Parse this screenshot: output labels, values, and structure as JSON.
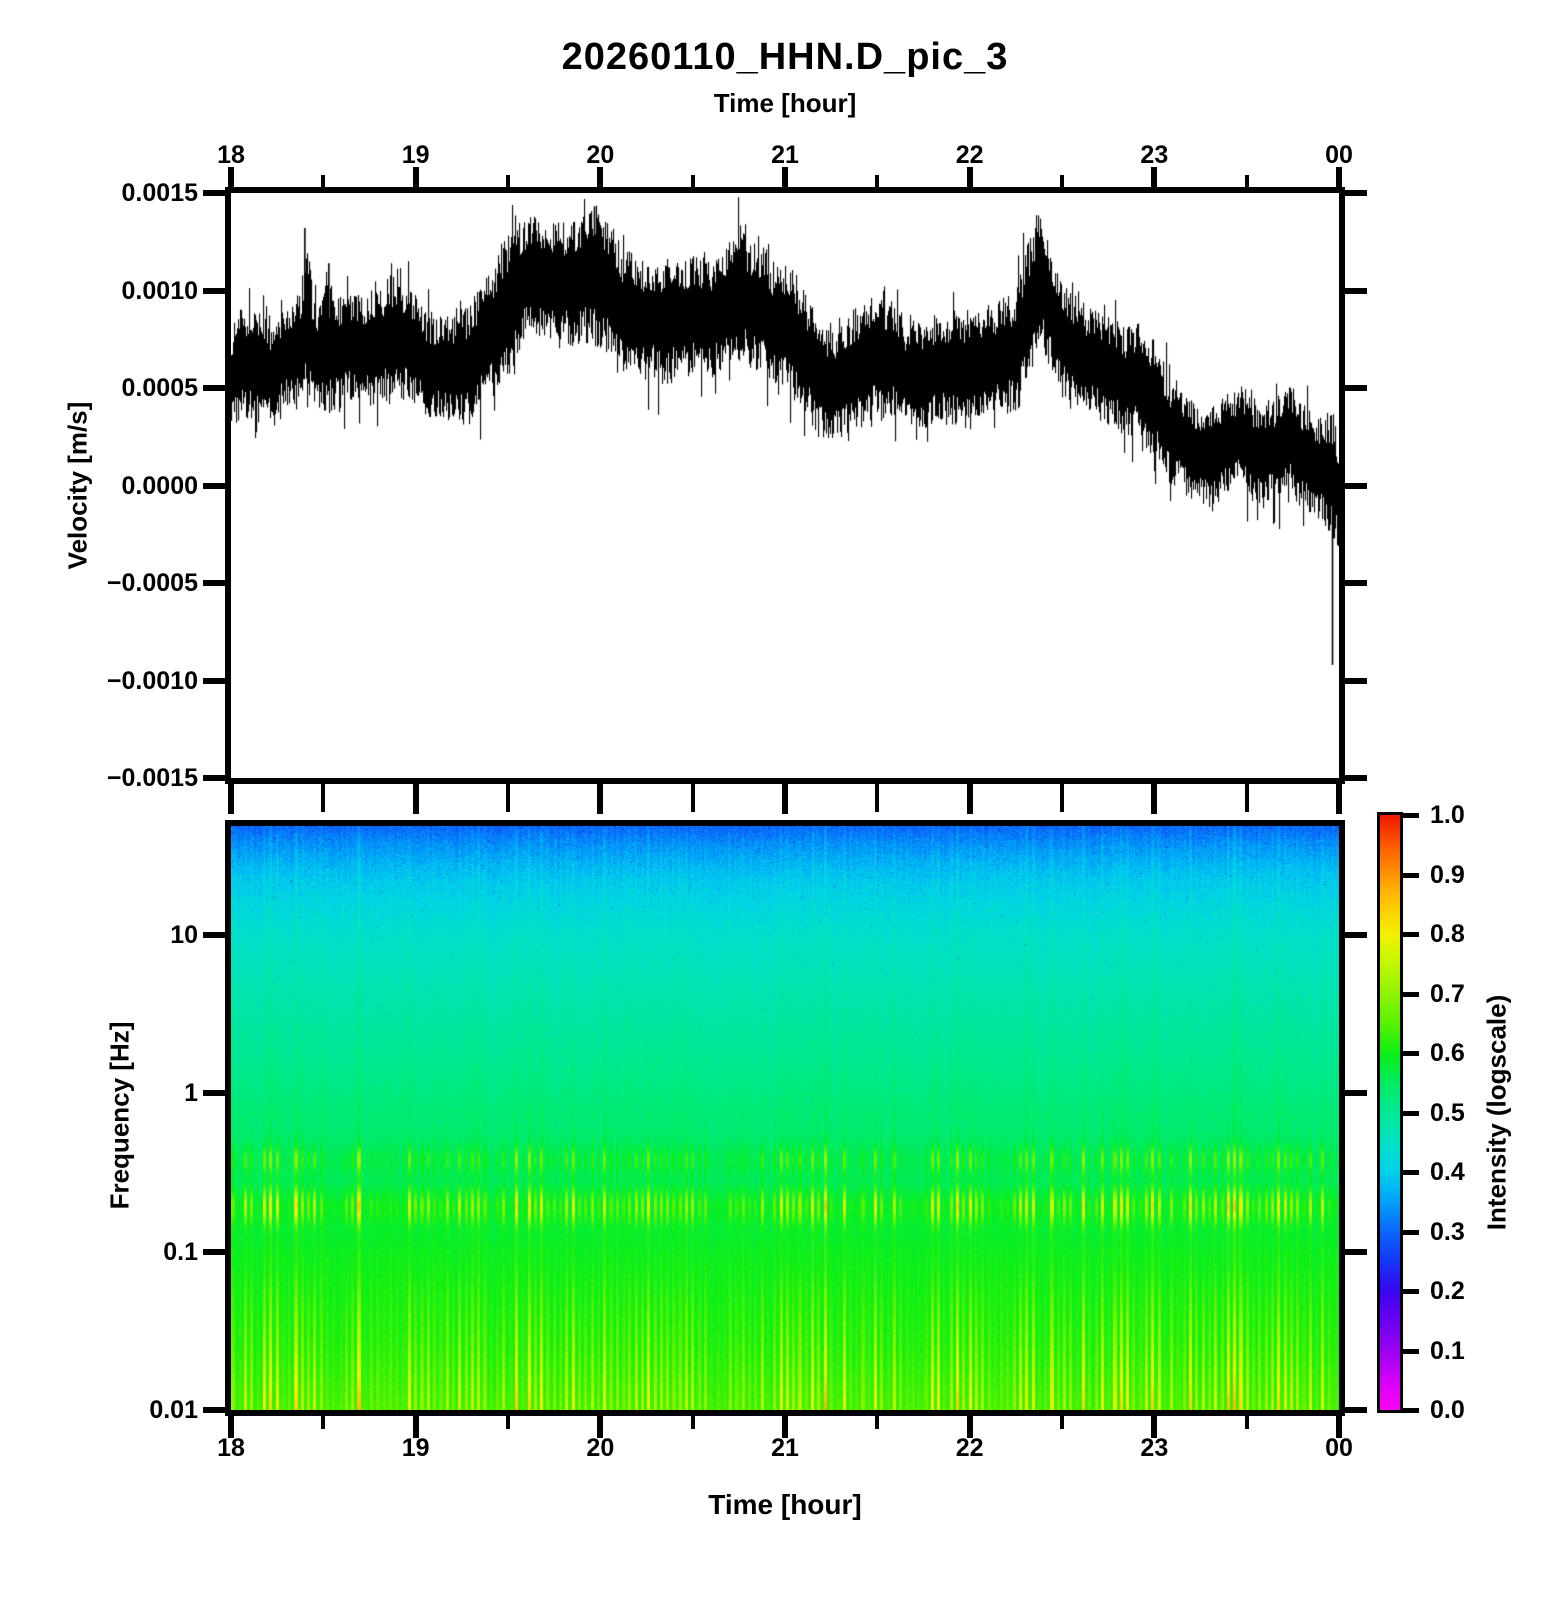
{
  "title": "20260110_HHN.D_pic_3",
  "seismogram": {
    "xlabel": "Time [hour]",
    "ylabel": "Velocity [m/s]",
    "xtick_labels": [
      "18",
      "19",
      "20",
      "21",
      "22",
      "23",
      "00"
    ],
    "ytick_labels": [
      "0.0015",
      "0.0010",
      "0.0005",
      "0.0000",
      "−0.0005",
      "−0.0010",
      "−0.0015"
    ]
  },
  "spectrogram": {
    "xlabel": "Time [hour]",
    "ylabel": "Frequency [Hz]",
    "xtick_labels": [
      "18",
      "19",
      "20",
      "21",
      "22",
      "23",
      "00"
    ],
    "ytick_labels": [
      "10",
      "1",
      "0.1",
      "0.01"
    ]
  },
  "colorbar": {
    "label": "Intensity (logscale)",
    "tick_labels": [
      "1.0",
      "0.9",
      "0.8",
      "0.7",
      "0.6",
      "0.5",
      "0.4",
      "0.3",
      "0.2",
      "0.1",
      "0.0"
    ]
  },
  "chart_data": [
    {
      "type": "line",
      "title": "20260110_HHN.D_pic_3",
      "xlabel": "Time [hour]",
      "ylabel": "Velocity [m/s]",
      "x_range_hours": [
        18,
        24
      ],
      "xtick_labels": [
        "18",
        "19",
        "20",
        "21",
        "22",
        "23",
        "00"
      ],
      "ylim": [
        -0.0015,
        0.0015
      ],
      "ytick_values": [
        0.0015,
        0.001,
        0.0005,
        0.0,
        -0.0005,
        -0.001,
        -0.0015
      ],
      "series_name": "velocity-waveform",
      "envelope_units": "1e-4 m/s, [hour, center, half_amplitude]",
      "envelope": [
        [
          18.0,
          5.8,
          2.0
        ],
        [
          18.1,
          6.3,
          2.2
        ],
        [
          18.2,
          5.9,
          2.0
        ],
        [
          18.3,
          6.3,
          2.0
        ],
        [
          18.38,
          7.0,
          2.3
        ],
        [
          18.41,
          8.3,
          3.4
        ],
        [
          18.45,
          6.8,
          2.2
        ],
        [
          18.52,
          7.3,
          2.7
        ],
        [
          18.6,
          7.0,
          2.2
        ],
        [
          18.7,
          7.3,
          2.2
        ],
        [
          18.8,
          7.2,
          2.4
        ],
        [
          18.9,
          7.4,
          2.5
        ],
        [
          19.0,
          6.9,
          2.2
        ],
        [
          19.1,
          5.9,
          2.0
        ],
        [
          19.2,
          6.0,
          2.2
        ],
        [
          19.3,
          6.8,
          2.4
        ],
        [
          19.4,
          7.6,
          2.6
        ],
        [
          19.5,
          9.2,
          2.8
        ],
        [
          19.6,
          10.6,
          2.5
        ],
        [
          19.7,
          10.3,
          2.4
        ],
        [
          19.8,
          10.6,
          2.4
        ],
        [
          19.9,
          10.8,
          2.6
        ],
        [
          19.97,
          10.9,
          3.0
        ],
        [
          20.05,
          10.2,
          2.6
        ],
        [
          20.15,
          8.8,
          2.4
        ],
        [
          20.25,
          8.1,
          2.4
        ],
        [
          20.35,
          8.3,
          2.4
        ],
        [
          20.45,
          8.8,
          2.4
        ],
        [
          20.55,
          8.7,
          2.4
        ],
        [
          20.65,
          9.1,
          2.4
        ],
        [
          20.75,
          9.4,
          2.6
        ],
        [
          20.85,
          9.0,
          2.6
        ],
        [
          20.95,
          8.3,
          2.4
        ],
        [
          21.05,
          7.6,
          2.6
        ],
        [
          21.15,
          6.3,
          2.4
        ],
        [
          21.25,
          5.3,
          2.2
        ],
        [
          21.35,
          5.6,
          2.4
        ],
        [
          21.45,
          6.6,
          2.6
        ],
        [
          21.55,
          6.3,
          2.4
        ],
        [
          21.65,
          5.7,
          2.2
        ],
        [
          21.75,
          5.9,
          2.2
        ],
        [
          21.85,
          6.1,
          2.2
        ],
        [
          21.95,
          6.2,
          2.4
        ],
        [
          22.05,
          6.0,
          2.2
        ],
        [
          22.15,
          6.2,
          2.2
        ],
        [
          22.25,
          6.8,
          2.4
        ],
        [
          22.33,
          9.0,
          3.0
        ],
        [
          22.38,
          10.4,
          2.7
        ],
        [
          22.45,
          8.8,
          2.4
        ],
        [
          22.55,
          7.4,
          2.4
        ],
        [
          22.65,
          6.2,
          2.2
        ],
        [
          22.75,
          5.9,
          2.2
        ],
        [
          22.85,
          5.2,
          2.2
        ],
        [
          22.95,
          5.0,
          2.4
        ],
        [
          23.05,
          3.8,
          2.2
        ],
        [
          23.15,
          2.4,
          2.0
        ],
        [
          23.25,
          1.6,
          2.0
        ],
        [
          23.35,
          1.8,
          2.0
        ],
        [
          23.45,
          2.2,
          2.0
        ],
        [
          23.55,
          1.6,
          2.0
        ],
        [
          23.65,
          1.9,
          2.0
        ],
        [
          23.75,
          2.3,
          2.2
        ],
        [
          23.85,
          1.4,
          2.0
        ],
        [
          23.92,
          1.2,
          2.2
        ],
        [
          23.98,
          0.3,
          2.6
        ],
        [
          24.0,
          -0.8,
          2.2
        ]
      ],
      "peaks_m_per_s": [
        [
          18.4,
          0.00132
        ],
        [
          18.53,
          0.00114
        ],
        [
          19.97,
          0.00143
        ],
        [
          22.37,
          0.0013
        ],
        [
          23.97,
          -0.00092
        ]
      ],
      "line_color": "#000000"
    },
    {
      "type": "heatmap",
      "xlabel": "Time [hour]",
      "ylabel": "Frequency [Hz]",
      "x_range_hours": [
        18,
        24
      ],
      "freq_range_hz": [
        0.01,
        49
      ],
      "ytick_labels": [
        "10",
        "1",
        "0.1",
        "0.01"
      ],
      "colorbar_label": "Intensity (logscale)",
      "colorbar_ticks": [
        1.0,
        0.9,
        0.8,
        0.7,
        0.6,
        0.5,
        0.4,
        0.3,
        0.2,
        0.1,
        0.0
      ],
      "colormap_stops": [
        [
          0.0,
          "#ff00f4"
        ],
        [
          0.05,
          "#d400f8"
        ],
        [
          0.1,
          "#9b00f2"
        ],
        [
          0.15,
          "#6a00f0"
        ],
        [
          0.2,
          "#3a06f0"
        ],
        [
          0.25,
          "#1437f8"
        ],
        [
          0.3,
          "#0a68fa"
        ],
        [
          0.35,
          "#00a2f8"
        ],
        [
          0.4,
          "#00d2ec"
        ],
        [
          0.45,
          "#00e2c4"
        ],
        [
          0.5,
          "#00e896"
        ],
        [
          0.55,
          "#00ec62"
        ],
        [
          0.6,
          "#0cf014"
        ],
        [
          0.65,
          "#57f200"
        ],
        [
          0.7,
          "#8ff400"
        ],
        [
          0.75,
          "#c3f600"
        ],
        [
          0.8,
          "#f2f200"
        ],
        [
          0.85,
          "#ffc800"
        ],
        [
          0.9,
          "#ff9600"
        ],
        [
          0.95,
          "#ff5a00"
        ],
        [
          1.0,
          "#f01800"
        ]
      ],
      "intensity_profile_top_to_bottom": [
        [
          0.0,
          0.295
        ],
        [
          0.027,
          0.33
        ],
        [
          0.062,
          0.365
        ],
        [
          0.092,
          0.39
        ],
        [
          0.127,
          0.41
        ],
        [
          0.187,
          0.44
        ],
        [
          0.265,
          0.465
        ],
        [
          0.351,
          0.49
        ],
        [
          0.461,
          0.52
        ],
        [
          0.531,
          0.545
        ],
        [
          0.572,
          0.565
        ],
        [
          0.609,
          0.56
        ],
        [
          0.651,
          0.595
        ],
        [
          0.692,
          0.585
        ],
        [
          0.734,
          0.6
        ],
        [
          0.805,
          0.61
        ],
        [
          0.89,
          0.62
        ],
        [
          1.0,
          0.645
        ]
      ],
      "stripe_bands": [
        {
          "center_frac": 0.572,
          "sigma_frac": 0.0154,
          "amp": 0.13,
          "note": "~0.4 Hz yellow-green striation band"
        },
        {
          "center_frac": 0.651,
          "sigma_frac": 0.0205,
          "amp": 0.24,
          "note": "~0.2 Hz yellow-orange striation band"
        }
      ],
      "bottom_ramp": {
        "start_frac": 0.753,
        "amp_at_bottom": 0.2,
        "note": "low-frequency bright green/yellow vertical stripes"
      }
    }
  ]
}
